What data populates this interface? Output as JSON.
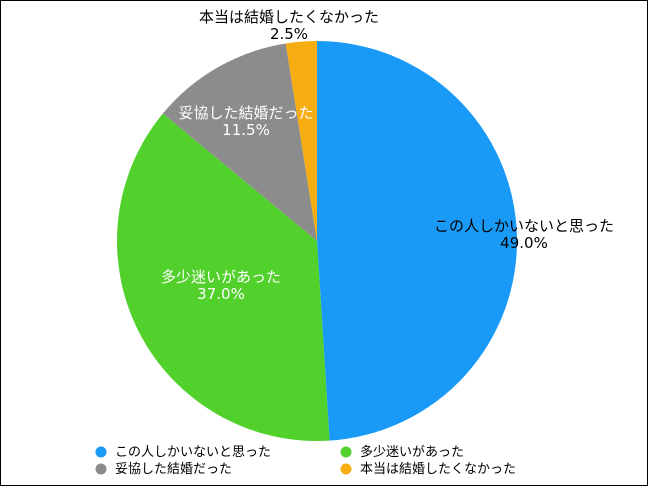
{
  "chart_data": {
    "type": "pie",
    "title": "",
    "categories": [
      "この人しかいないと思った",
      "多少迷いがあった",
      "妥協した結婚だった",
      "本当は結婚したくなかった"
    ],
    "values": [
      49.0,
      37.0,
      11.5,
      2.5
    ],
    "value_labels": [
      "49.0%",
      "37.0%",
      "11.5%",
      "2.5%"
    ],
    "colors": [
      "#1a9af7",
      "#52d02c",
      "#8c8c8c",
      "#f6ad12"
    ],
    "start_angle": "12 o'clock",
    "direction": "clockwise",
    "legend": {
      "placement": "bottom",
      "columns": 2,
      "items": [
        "この人しかいないと思った",
        "多少迷いがあった",
        "妥協した結婚だった",
        "本当は結婚したくなかった"
      ]
    }
  }
}
